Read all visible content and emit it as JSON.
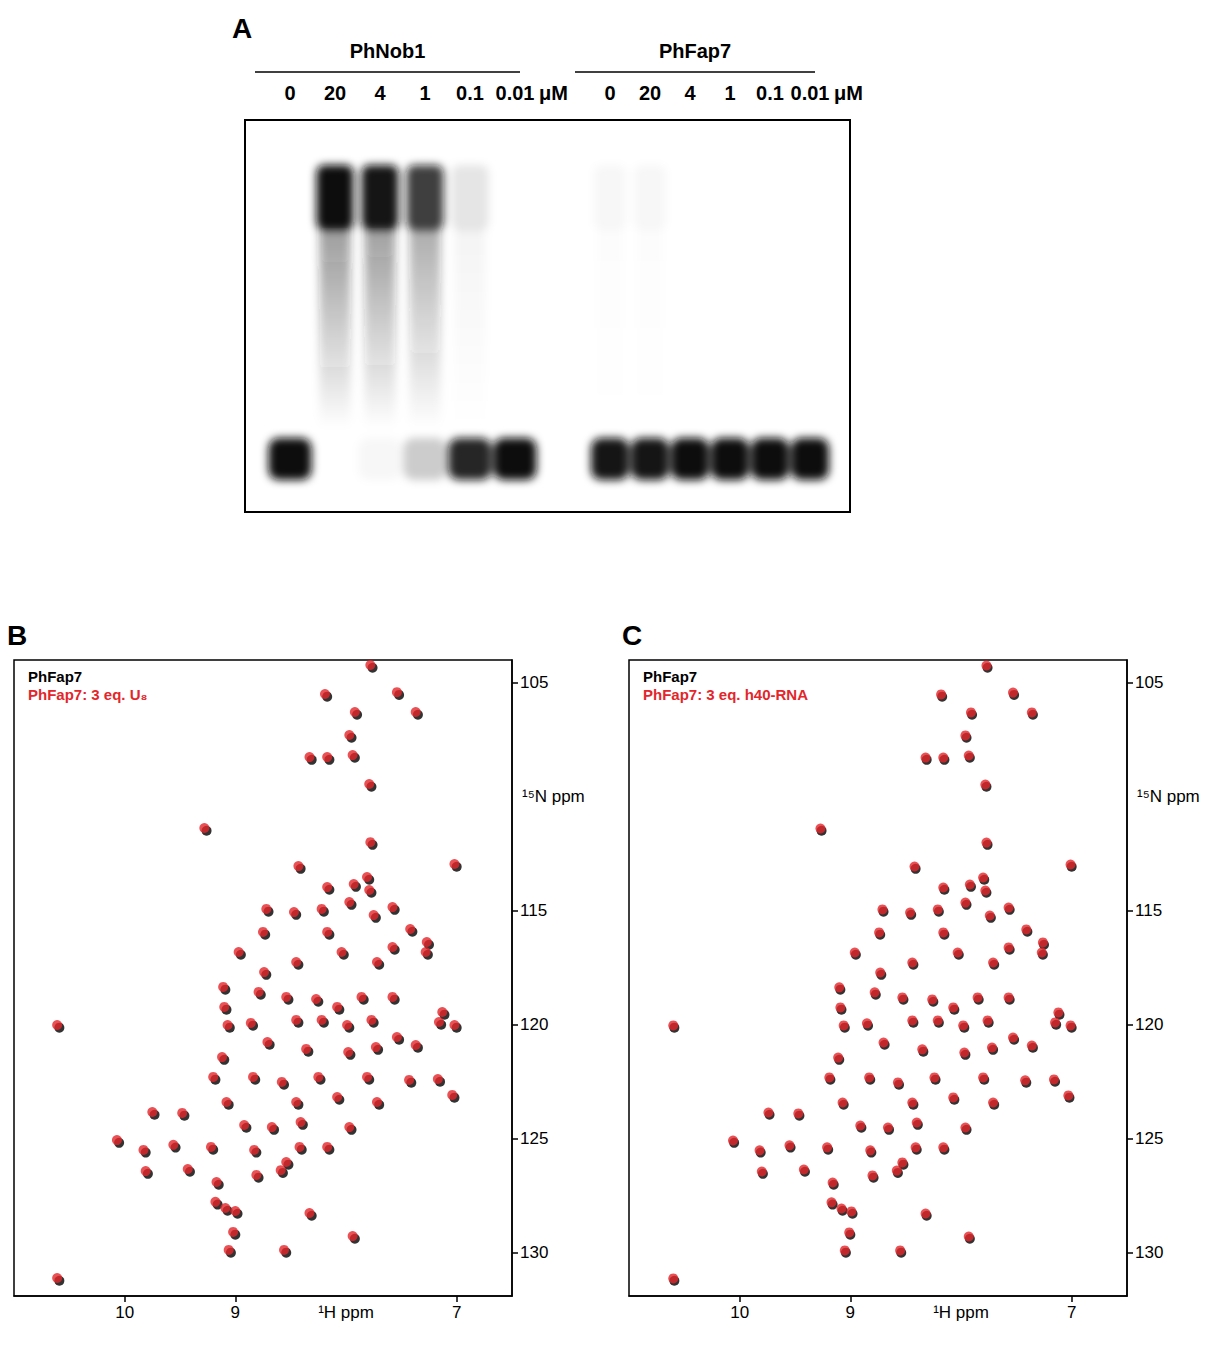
{
  "gel": {
    "panel": "A",
    "unit": "μM",
    "groups": [
      {
        "name": "PhNob1",
        "lanes": [
          {
            "conc": 0,
            "free_fraction": 1.0
          },
          {
            "conc": 20,
            "free_fraction": 0.0
          },
          {
            "conc": 4,
            "free_fraction": 0.03
          },
          {
            "conc": 1,
            "free_fraction": 0.2
          },
          {
            "conc": 0.1,
            "free_fraction": 0.9
          },
          {
            "conc": 0.01,
            "free_fraction": 1.0
          }
        ]
      },
      {
        "name": "PhFap7",
        "lanes": [
          {
            "conc": 0,
            "free_fraction": 0.97
          },
          {
            "conc": 20,
            "free_fraction": 0.97
          },
          {
            "conc": 4,
            "free_fraction": 1.0
          },
          {
            "conc": 1,
            "free_fraction": 1.0
          },
          {
            "conc": 0.1,
            "free_fraction": 1.0
          },
          {
            "conc": 0.01,
            "free_fraction": 1.0
          }
        ]
      }
    ]
  },
  "chart_data": [
    {
      "type": "scatter",
      "panel": "B",
      "x_label": "¹H ppm",
      "y_label": "¹⁵N ppm",
      "xlim": [
        11.0,
        6.5
      ],
      "xticks": [
        10,
        9,
        7
      ],
      "ylim": [
        131.9,
        104.0
      ],
      "yticks": [
        105,
        115,
        120,
        125,
        130
      ],
      "grid": false,
      "legend": "top-left",
      "marker": "circle",
      "series": [
        {
          "name": "PhFap7",
          "color": "#000000",
          "x": [
            10.59,
            10.59,
            7.76,
            8.17,
            7.52,
            7.35,
            7.9,
            7.95,
            8.31,
            8.15,
            7.92,
            7.77,
            9.26,
            7.76,
            8.41,
            7.0,
            8.15,
            7.91,
            7.79,
            7.77,
            8.7,
            8.45,
            8.2,
            7.95,
            7.56,
            8.95,
            8.73,
            8.15,
            7.73,
            7.4,
            7.25,
            7.56,
            7.26,
            9.09,
            8.72,
            8.43,
            8.02,
            7.7,
            7.11,
            7.14,
            7.0,
            9.08,
            8.77,
            8.52,
            8.25,
            8.06,
            7.84,
            7.56,
            9.05,
            8.84,
            8.43,
            8.2,
            7.97,
            7.75,
            7.52,
            9.1,
            8.69,
            8.34,
            7.96,
            7.71,
            7.35,
            9.18,
            8.82,
            8.56,
            8.23,
            7.79,
            7.41,
            7.15,
            9.06,
            8.43,
            8.06,
            7.7,
            7.02,
            8.9,
            8.65,
            8.39,
            7.95,
            9.2,
            8.81,
            8.4,
            8.15,
            9.46,
            9.73,
            10.05,
            9.81,
            9.54,
            9.41,
            9.15,
            8.79,
            8.52,
            9.79,
            9.16,
            9.07,
            8.98,
            9.0,
            9.04,
            8.54,
            8.31,
            7.92,
            8.57
          ],
          "y": [
            120.13,
            131.23,
            104.34,
            105.61,
            105.53,
            106.4,
            106.4,
            107.41,
            108.38,
            108.38,
            108.29,
            109.56,
            111.49,
            112.11,
            113.16,
            113.07,
            114.08,
            113.95,
            113.64,
            114.21,
            115.04,
            115.18,
            115.04,
            114.74,
            114.96,
            116.93,
            116.05,
            116.05,
            115.31,
            115.92,
            116.49,
            116.71,
            116.93,
            118.46,
            117.81,
            117.37,
            116.93,
            117.37,
            119.56,
            120.0,
            120.13,
            119.34,
            118.68,
            118.9,
            118.99,
            119.34,
            118.9,
            118.9,
            120.13,
            120.04,
            119.91,
            119.91,
            120.13,
            119.91,
            120.66,
            121.54,
            120.88,
            121.18,
            121.32,
            121.1,
            121.01,
            122.41,
            122.41,
            122.63,
            122.41,
            122.41,
            122.54,
            122.5,
            123.51,
            123.51,
            123.29,
            123.51,
            123.2,
            124.52,
            124.61,
            124.39,
            124.61,
            125.48,
            125.61,
            125.48,
            125.48,
            123.99,
            123.95,
            125.18,
            125.61,
            125.39,
            126.45,
            127.02,
            126.71,
            126.14,
            126.54,
            127.89,
            128.16,
            128.29,
            129.21,
            130.0,
            130.0,
            128.38,
            129.39,
            126.5
          ]
        },
        {
          "name": "PhFap7: 3 eq. U₈",
          "color": "#e3262b",
          "x": [
            10.61,
            10.61,
            7.78,
            8.19,
            7.54,
            7.37,
            7.92,
            7.97,
            8.33,
            8.17,
            7.94,
            7.79,
            9.28,
            7.78,
            8.43,
            7.02,
            8.17,
            7.93,
            7.81,
            7.79,
            8.72,
            8.47,
            8.22,
            7.97,
            7.58,
            8.97,
            8.75,
            8.17,
            7.75,
            7.42,
            7.27,
            7.58,
            7.28,
            9.11,
            8.74,
            8.45,
            8.04,
            7.72,
            7.13,
            7.16,
            7.02,
            9.1,
            8.79,
            8.54,
            8.27,
            8.08,
            7.86,
            7.58,
            9.07,
            8.86,
            8.45,
            8.22,
            7.99,
            7.77,
            7.54,
            9.12,
            8.71,
            8.36,
            7.98,
            7.73,
            7.37,
            9.2,
            8.84,
            8.58,
            8.25,
            7.81,
            7.43,
            7.17,
            9.08,
            8.45,
            8.08,
            7.72,
            7.04,
            8.92,
            8.67,
            8.41,
            7.97,
            9.22,
            8.83,
            8.42,
            8.17,
            9.48,
            9.75,
            10.07,
            9.83,
            9.56,
            9.43,
            9.17,
            8.81,
            8.54,
            9.81,
            9.18,
            9.09,
            9.0,
            9.02,
            9.06,
            8.56,
            8.33,
            7.94,
            8.59
          ],
          "y": [
            120.01,
            131.11,
            104.22,
            105.49,
            105.41,
            106.28,
            106.28,
            107.29,
            108.26,
            108.26,
            108.17,
            109.44,
            111.37,
            111.99,
            113.04,
            112.95,
            113.96,
            113.83,
            113.52,
            114.09,
            114.92,
            115.06,
            114.92,
            114.62,
            114.84,
            116.81,
            115.93,
            115.93,
            115.19,
            115.8,
            116.37,
            116.59,
            116.81,
            118.34,
            117.69,
            117.25,
            116.81,
            117.25,
            119.44,
            119.88,
            120.01,
            119.22,
            118.56,
            118.78,
            118.87,
            119.22,
            118.78,
            118.78,
            120.01,
            119.92,
            119.79,
            119.79,
            120.01,
            119.79,
            120.54,
            121.42,
            120.76,
            121.06,
            121.2,
            120.98,
            120.89,
            122.29,
            122.29,
            122.51,
            122.29,
            122.29,
            122.42,
            122.38,
            123.39,
            123.39,
            123.17,
            123.39,
            123.08,
            124.4,
            124.49,
            124.27,
            124.49,
            125.36,
            125.49,
            125.36,
            125.36,
            123.87,
            123.83,
            125.06,
            125.49,
            125.27,
            126.33,
            126.9,
            126.59,
            126.02,
            126.42,
            127.77,
            128.04,
            128.17,
            129.09,
            129.88,
            129.88,
            128.26,
            129.27,
            126.38
          ]
        }
      ]
    },
    {
      "type": "scatter",
      "panel": "C",
      "x_label": "¹H ppm",
      "y_label": "¹⁵N ppm",
      "xlim": [
        11.0,
        6.5
      ],
      "xticks": [
        10,
        9,
        7
      ],
      "ylim": [
        131.9,
        104.0
      ],
      "yticks": [
        105,
        115,
        120,
        125,
        130
      ],
      "grid": false,
      "legend": "top-left",
      "marker": "circle",
      "series": [
        {
          "name": "PhFap7",
          "color": "#000000",
          "x": [
            10.59,
            10.59,
            7.76,
            8.17,
            7.52,
            7.35,
            7.9,
            7.95,
            8.31,
            8.15,
            7.92,
            7.77,
            9.26,
            7.76,
            8.41,
            7.0,
            8.15,
            7.91,
            7.79,
            7.77,
            8.7,
            8.45,
            8.2,
            7.95,
            7.56,
            8.95,
            8.73,
            8.15,
            7.73,
            7.4,
            7.25,
            7.56,
            7.26,
            9.09,
            8.72,
            8.43,
            8.02,
            7.7,
            7.11,
            7.14,
            7.0,
            9.08,
            8.77,
            8.52,
            8.25,
            8.06,
            7.84,
            7.56,
            9.05,
            8.84,
            8.43,
            8.2,
            7.97,
            7.75,
            7.52,
            9.1,
            8.69,
            8.34,
            7.96,
            7.71,
            7.35,
            9.18,
            8.82,
            8.56,
            8.23,
            7.79,
            7.41,
            7.15,
            9.06,
            8.43,
            8.06,
            7.7,
            7.02,
            8.9,
            8.65,
            8.39,
            7.95,
            9.2,
            8.81,
            8.4,
            8.15,
            9.46,
            9.73,
            10.05,
            9.81,
            9.54,
            9.41,
            9.15,
            8.79,
            8.52,
            9.79,
            9.16,
            9.07,
            8.98,
            9.0,
            9.04,
            8.54,
            8.31,
            7.92,
            8.57
          ],
          "y": [
            120.13,
            131.23,
            104.34,
            105.61,
            105.53,
            106.4,
            106.4,
            107.41,
            108.38,
            108.38,
            108.29,
            109.56,
            111.49,
            112.11,
            113.16,
            113.07,
            114.08,
            113.95,
            113.64,
            114.21,
            115.04,
            115.18,
            115.04,
            114.74,
            114.96,
            116.93,
            116.05,
            116.05,
            115.31,
            115.92,
            116.49,
            116.71,
            116.93,
            118.46,
            117.81,
            117.37,
            116.93,
            117.37,
            119.56,
            120.0,
            120.13,
            119.34,
            118.68,
            118.9,
            118.99,
            119.34,
            118.9,
            118.9,
            120.13,
            120.04,
            119.91,
            119.91,
            120.13,
            119.91,
            120.66,
            121.54,
            120.88,
            121.18,
            121.32,
            121.1,
            121.01,
            122.41,
            122.41,
            122.63,
            122.41,
            122.41,
            122.54,
            122.5,
            123.51,
            123.51,
            123.29,
            123.51,
            123.2,
            124.52,
            124.61,
            124.39,
            124.61,
            125.48,
            125.61,
            125.48,
            125.48,
            123.99,
            123.95,
            125.18,
            125.61,
            125.39,
            126.45,
            127.02,
            126.71,
            126.14,
            126.54,
            127.89,
            128.16,
            128.29,
            129.21,
            130.0,
            130.0,
            128.38,
            129.39,
            126.5
          ]
        },
        {
          "name": "PhFap7: 3 eq. h40-RNA",
          "color": "#e3262b",
          "x": [
            10.6,
            10.6,
            7.77,
            8.18,
            7.53,
            7.36,
            7.91,
            7.96,
            8.32,
            8.16,
            7.93,
            7.78,
            9.27,
            7.77,
            8.42,
            7.01,
            8.16,
            7.92,
            7.8,
            7.78,
            8.71,
            8.46,
            8.21,
            7.96,
            7.57,
            8.96,
            8.74,
            8.16,
            7.74,
            7.41,
            7.26,
            7.57,
            7.27,
            9.1,
            8.73,
            8.44,
            8.03,
            7.71,
            7.12,
            7.15,
            7.01,
            9.09,
            8.78,
            8.53,
            8.26,
            8.07,
            7.85,
            7.57,
            9.06,
            8.85,
            8.44,
            8.21,
            7.98,
            7.76,
            7.53,
            9.11,
            8.7,
            8.35,
            7.97,
            7.72,
            7.36,
            9.19,
            8.83,
            8.57,
            8.24,
            7.8,
            7.42,
            7.16,
            9.07,
            8.44,
            8.07,
            7.71,
            7.03,
            8.91,
            8.66,
            8.4,
            7.96,
            9.21,
            8.82,
            8.41,
            8.16,
            9.47,
            9.74,
            10.06,
            9.82,
            9.55,
            9.42,
            9.16,
            8.8,
            8.53,
            9.8,
            9.17,
            9.08,
            8.99,
            9.01,
            9.05,
            8.55,
            8.32,
            7.93,
            8.58
          ],
          "y": [
            120.03,
            131.13,
            104.24,
            105.51,
            105.43,
            106.3,
            106.3,
            107.31,
            108.28,
            108.28,
            108.19,
            109.46,
            111.39,
            112.01,
            113.06,
            112.97,
            113.98,
            113.85,
            113.54,
            114.11,
            114.94,
            115.08,
            114.94,
            114.64,
            114.86,
            116.83,
            115.95,
            115.95,
            115.21,
            115.82,
            116.39,
            116.61,
            116.83,
            118.36,
            117.71,
            117.27,
            116.83,
            117.27,
            119.46,
            119.9,
            120.03,
            119.24,
            118.58,
            118.8,
            118.89,
            119.24,
            118.8,
            118.8,
            120.03,
            119.94,
            119.81,
            119.81,
            120.03,
            119.81,
            120.56,
            121.44,
            120.78,
            121.08,
            121.22,
            121.0,
            120.91,
            122.31,
            122.31,
            122.53,
            122.31,
            122.31,
            122.44,
            122.4,
            123.41,
            123.41,
            123.19,
            123.41,
            123.1,
            124.42,
            124.51,
            124.29,
            124.51,
            125.38,
            125.51,
            125.38,
            125.38,
            123.89,
            123.85,
            125.08,
            125.51,
            125.29,
            126.35,
            126.92,
            126.61,
            126.04,
            126.44,
            127.79,
            128.06,
            128.19,
            129.11,
            129.9,
            129.9,
            128.28,
            129.29,
            126.4
          ]
        }
      ]
    }
  ]
}
